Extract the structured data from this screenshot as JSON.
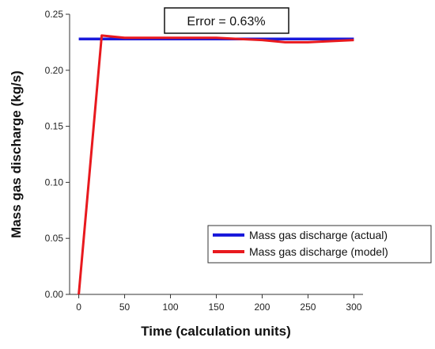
{
  "chart_data": {
    "type": "line",
    "xlabel": "Time (calculation units)",
    "ylabel": "Mass gas discharge (kg/s)",
    "xlim": [
      -10,
      310
    ],
    "ylim": [
      0,
      0.25
    ],
    "xticks": [
      0,
      50,
      100,
      150,
      200,
      250,
      300
    ],
    "yticks": [
      0.0,
      0.05,
      0.1,
      0.15,
      0.2,
      0.25
    ],
    "xtick_labels": [
      "0",
      "50",
      "100",
      "150",
      "200",
      "250",
      "300"
    ],
    "ytick_labels": [
      "0.00",
      "0.05",
      "0.10",
      "0.15",
      "0.20",
      "0.25"
    ],
    "grid": false,
    "legend_position": "bottom-right",
    "annotation": "Error = 0.63%",
    "series": [
      {
        "name": "Mass gas discharge (actual)",
        "color": "#1a1adb",
        "x": [
          0,
          300
        ],
        "y": [
          0.228,
          0.228
        ]
      },
      {
        "name": "Mass gas discharge (model)",
        "color": "#e8191e",
        "x": [
          0,
          25,
          50,
          100,
          150,
          175,
          200,
          225,
          250,
          275,
          300
        ],
        "y": [
          0.0,
          0.231,
          0.229,
          0.229,
          0.229,
          0.228,
          0.227,
          0.225,
          0.225,
          0.226,
          0.227
        ]
      }
    ]
  }
}
